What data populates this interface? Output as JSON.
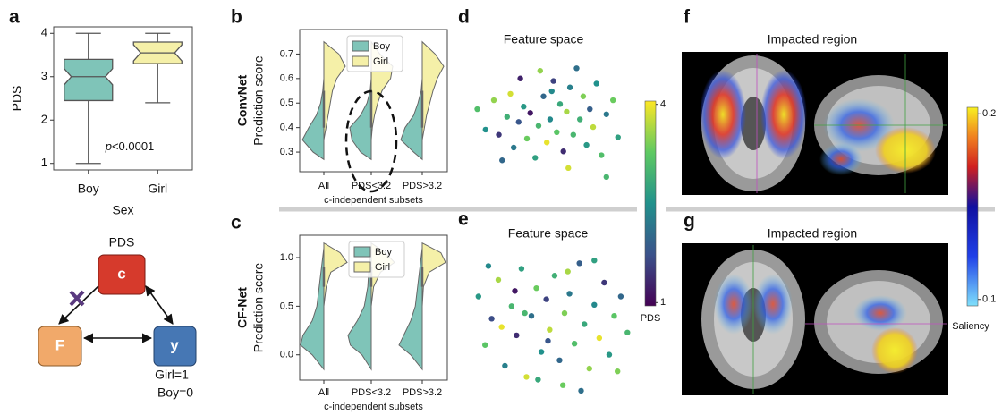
{
  "panels": [
    "a",
    "b",
    "c",
    "d",
    "e",
    "f",
    "g"
  ],
  "diagram": {
    "top_label": "PDS",
    "nodes": [
      {
        "label": "c"
      },
      {
        "label": "F"
      },
      {
        "label": "y"
      }
    ],
    "notes": [
      "Girl=1",
      "Boy=0"
    ]
  },
  "chart_data": [
    {
      "type": "box",
      "ylabel": "PDS",
      "xlabel": "Sex",
      "annotation_symbol": "p",
      "annotation_text": "<0.0001",
      "categories": [
        "Boy",
        "Girl"
      ],
      "boxes": [
        {
          "whislo": 1.0,
          "q1": 2.45,
          "med": 3.0,
          "q3": 3.4,
          "whishi": 4.0,
          "color": "#7fc4b8"
        },
        {
          "whislo": 2.4,
          "q1": 3.3,
          "med": 3.55,
          "q3": 3.8,
          "whishi": 4.0,
          "color": "#f5f0a8"
        }
      ],
      "ylim": [
        0.85,
        4.15
      ],
      "yticks": [
        1,
        2,
        3,
        4
      ]
    },
    {
      "type": "violin",
      "model": "ConvNet",
      "ylabel": "Prediction score",
      "xlabel": "c-independent subsets",
      "categories": [
        "All",
        "PDS<3.2",
        "PDS>3.2"
      ],
      "legend": "upper center",
      "series": [
        {
          "name": "Boy",
          "color": "#7fc4b8",
          "side": "left",
          "y": [
            0.27,
            0.3,
            0.35,
            0.4,
            0.45,
            0.5,
            0.55,
            0.6
          ],
          "density": [
            [
              0,
              0.5,
              1.0,
              0.7,
              0.35,
              0.15,
              0.05,
              0
            ],
            [
              0,
              0.5,
              0.9,
              1.0,
              0.5,
              0.2,
              0.05,
              0
            ],
            [
              0,
              0.4,
              1.0,
              0.8,
              0.4,
              0.2,
              0.05,
              0
            ]
          ]
        },
        {
          "name": "Girl",
          "color": "#f5f0a8",
          "side": "right",
          "y": [
            0.35,
            0.4,
            0.45,
            0.5,
            0.55,
            0.6,
            0.65,
            0.7,
            0.75
          ],
          "density": [
            [
              0,
              0.1,
              0.2,
              0.3,
              0.4,
              0.6,
              1.0,
              0.7,
              0
            ],
            [
              0,
              0.05,
              0.15,
              0.3,
              0.5,
              0.9,
              1.0,
              0.4,
              0
            ],
            [
              0,
              0.1,
              0.2,
              0.35,
              0.5,
              0.7,
              1.0,
              0.6,
              0
            ]
          ]
        }
      ],
      "ylim": [
        0.22,
        0.8
      ],
      "yticks": [
        0.3,
        0.4,
        0.5,
        0.6,
        0.7
      ]
    },
    {
      "type": "violin",
      "model": "CF-Net",
      "ylabel": "Prediction score",
      "xlabel": "c-independent subsets",
      "categories": [
        "All",
        "PDS<3.2",
        "PDS>3.2"
      ],
      "legend": "upper center",
      "series": [
        {
          "name": "Boy",
          "color": "#7fc4b8",
          "side": "left",
          "y": [
            -0.15,
            0,
            0.1,
            0.2,
            0.35,
            0.5,
            0.7,
            0.9,
            1.1
          ],
          "density": [
            [
              0,
              0.5,
              1.0,
              0.9,
              0.5,
              0.3,
              0.2,
              0.1,
              0
            ],
            [
              0,
              0.4,
              0.9,
              1.0,
              0.6,
              0.3,
              0.15,
              0.1,
              0
            ],
            [
              0,
              0.5,
              1.0,
              0.8,
              0.5,
              0.3,
              0.2,
              0.1,
              0
            ]
          ]
        },
        {
          "name": "Girl",
          "color": "#f5f0a8",
          "side": "right",
          "y": [
            0.5,
            0.7,
            0.85,
            0.95,
            1.05,
            1.15
          ],
          "density": [
            [
              0,
              0.1,
              0.3,
              1.0,
              0.7,
              0
            ],
            [
              0,
              0.1,
              0.4,
              1.0,
              0.6,
              0
            ],
            [
              0,
              0.05,
              0.3,
              1.0,
              0.8,
              0
            ]
          ]
        }
      ],
      "ylim": [
        -0.26,
        1.23
      ],
      "yticks": [
        {
          "value": 0,
          "label": "0.0"
        },
        0.5,
        {
          "value": 1,
          "label": "1.0"
        }
      ]
    },
    {
      "type": "scatter",
      "title": "Feature space",
      "cmap": "viridis",
      "clim": [
        1,
        4
      ],
      "xlim": [
        0,
        10
      ],
      "ylim": [
        0,
        10
      ],
      "x": [
        1.0,
        1.5,
        2.0,
        2.3,
        2.8,
        3.0,
        3.2,
        3.5,
        3.8,
        4.0,
        4.2,
        4.5,
        4.7,
        5.0,
        5.2,
        5.4,
        5.6,
        5.8,
        6.0,
        6.2,
        6.4,
        6.6,
        6.8,
        7.0,
        7.2,
        7.4,
        7.6,
        7.8,
        8.0,
        8.2,
        8.5,
        8.8,
        9.2,
        9.5,
        3.6,
        4.8,
        2.5,
        6.5,
        8.8,
        5.5
      ],
      "y": [
        5.8,
        4.2,
        6.5,
        3.8,
        5.2,
        7.0,
        2.8,
        4.8,
        6.0,
        3.5,
        5.5,
        2.0,
        4.5,
        6.8,
        3.2,
        5.0,
        8.0,
        4.0,
        6.2,
        2.5,
        5.6,
        7.5,
        3.8,
        9.0,
        5.0,
        6.8,
        3.0,
        5.8,
        4.4,
        7.8,
        2.2,
        5.4,
        6.5,
        3.6,
        8.2,
        8.8,
        1.8,
        1.2,
        0.5,
        7.2
      ],
      "c": [
        3.1,
        2.5,
        3.5,
        1.5,
        2.9,
        3.8,
        2.2,
        1.8,
        2.6,
        3.3,
        1.2,
        2.7,
        3.0,
        2.0,
        3.9,
        2.4,
        1.6,
        3.2,
        2.8,
        1.4,
        3.6,
        2.3,
        3.0,
        2.1,
        2.9,
        3.4,
        2.6,
        1.9,
        3.7,
        2.5,
        3.1,
        2.2,
        3.3,
        2.7,
        1.3,
        3.5,
        2.0,
        3.8,
        3.0,
        2.4
      ]
    },
    {
      "type": "scatter",
      "title": "Feature space",
      "cmap": "viridis",
      "clim": [
        1,
        4
      ],
      "xlim": [
        0,
        10
      ],
      "ylim": [
        0,
        10
      ],
      "x": [
        0.8,
        1.2,
        1.6,
        2.0,
        2.4,
        2.8,
        3.1,
        3.4,
        3.7,
        4.0,
        4.3,
        4.6,
        4.9,
        5.1,
        5.4,
        5.7,
        6.0,
        6.3,
        6.6,
        6.9,
        7.2,
        7.5,
        7.8,
        8.1,
        8.4,
        8.7,
        9.0,
        9.4,
        9.8,
        2.2,
        3.0,
        4.4,
        5.9,
        7.0,
        6.2,
        1.4,
        5.0,
        3.6,
        7.8,
        9.2
      ],
      "y": [
        7.0,
        3.5,
        5.4,
        8.2,
        2.0,
        6.3,
        4.2,
        9.0,
        1.2,
        5.6,
        7.6,
        3.0,
        6.8,
        4.6,
        8.5,
        2.4,
        5.8,
        7.2,
        3.6,
        9.4,
        5.0,
        1.8,
        6.4,
        4.0,
        8.0,
        2.8,
        5.6,
        7.0,
        4.4,
        4.8,
        7.4,
        1.0,
        0.6,
        0.2,
        8.8,
        9.2,
        3.8,
        5.8,
        9.6,
        1.6
      ],
      "c": [
        2.6,
        3.2,
        1.7,
        3.6,
        2.3,
        3.0,
        1.4,
        2.7,
        3.8,
        2.1,
        3.3,
        2.5,
        1.6,
        3.7,
        2.9,
        2.0,
        3.4,
        2.2,
        3.1,
        1.9,
        2.8,
        3.5,
        2.4,
        3.9,
        1.5,
        2.6,
        3.2,
        2.0,
        3.0,
        3.9,
        1.2,
        2.8,
        3.3,
        2.1,
        3.6,
        2.4,
        1.8,
        3.0,
        2.7,
        3.4
      ]
    },
    {
      "type": "colorbar",
      "cmap": "viridis",
      "label": "PDS",
      "ylim": [
        0.95,
        4.05
      ],
      "yticks": [
        1,
        4
      ]
    },
    {
      "type": "colorbar",
      "cmap": "jet",
      "label": "Saliency",
      "ylim": [
        0.0965,
        0.2035
      ],
      "yticks": [
        0.1,
        0.2
      ]
    },
    {
      "type": "image",
      "title": "Impacted region"
    },
    {
      "type": "image",
      "title": "Impacted region"
    }
  ]
}
